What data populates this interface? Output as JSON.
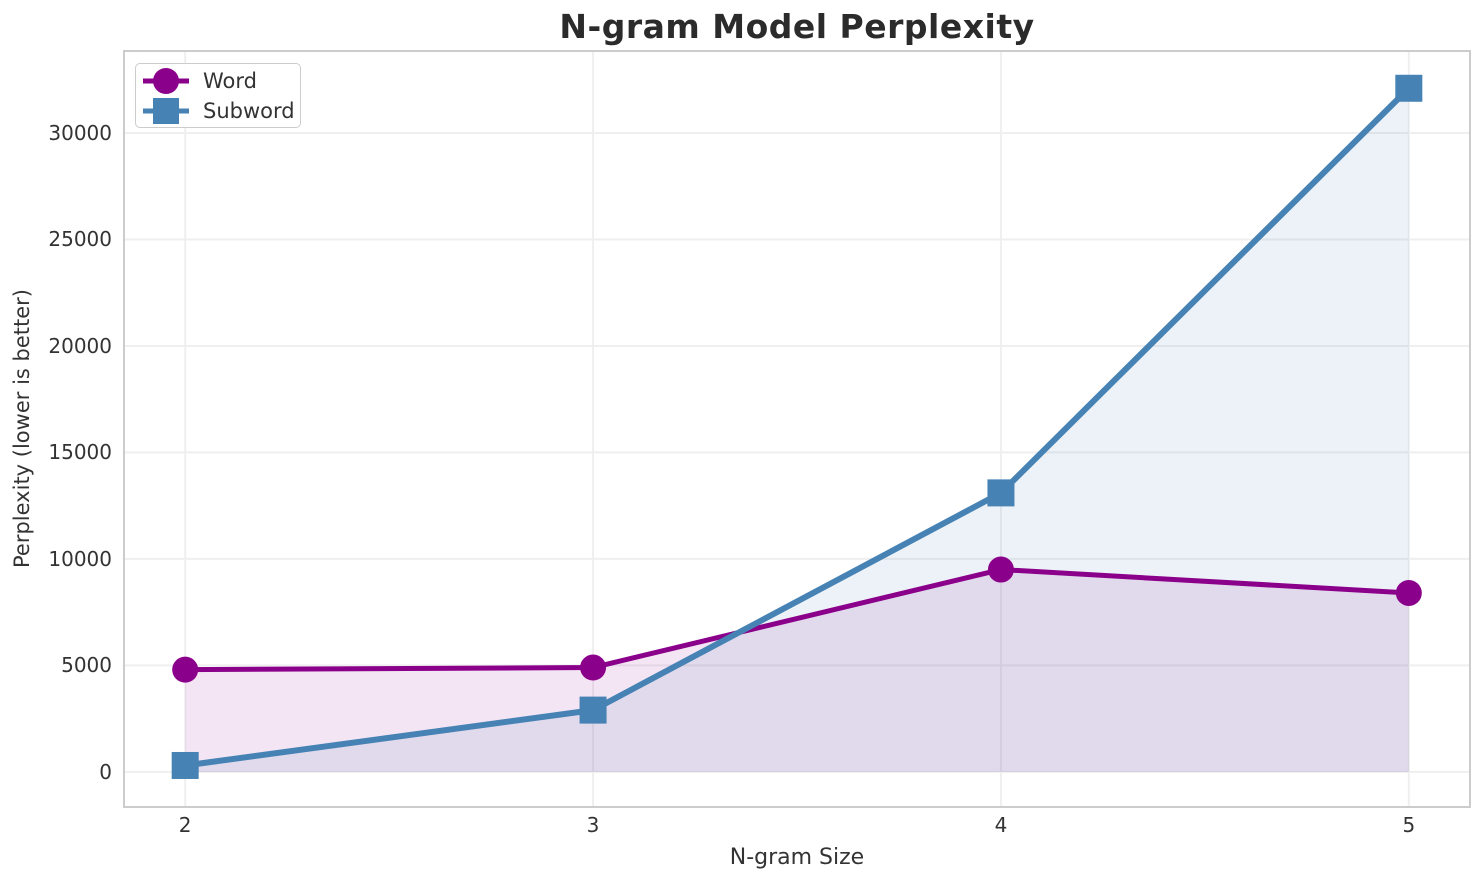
{
  "chart_data": {
    "type": "line",
    "title": "N-gram Model Perplexity",
    "xlabel": "N-gram Size",
    "ylabel": "Perplexity (lower is better)",
    "x": [
      2,
      3,
      4,
      5
    ],
    "series": [
      {
        "name": "Word",
        "marker": "circle",
        "color": "#8B008B",
        "line_width": 5,
        "values": [
          4800,
          4900,
          9500,
          8400
        ]
      },
      {
        "name": "Subword",
        "marker": "square",
        "color": "#4682B4",
        "line_width": 6,
        "values": [
          300,
          2900,
          13100,
          32100
        ]
      }
    ],
    "fill_to_zero": true,
    "fill_alpha": 0.1,
    "xlim": [
      1.85,
      5.15
    ],
    "ylim": [
      -1650,
      33850
    ],
    "xticks": {
      "values": [
        2,
        3,
        4,
        5
      ],
      "labels": [
        "2",
        "3",
        "4",
        "5"
      ]
    },
    "yticks": {
      "values": [
        0,
        5000,
        10000,
        15000,
        20000,
        25000,
        30000
      ],
      "labels": [
        "0",
        "5000",
        "10000",
        "15000",
        "20000",
        "25000",
        "30000"
      ]
    },
    "grid": true,
    "legend_position": "upper-left",
    "colors": {
      "grid": "#EFEFEF",
      "spine": "#CCCCCC",
      "tick_text": "#333333",
      "title_text": "#2B2B2B",
      "background": "#FFFFFF"
    }
  }
}
